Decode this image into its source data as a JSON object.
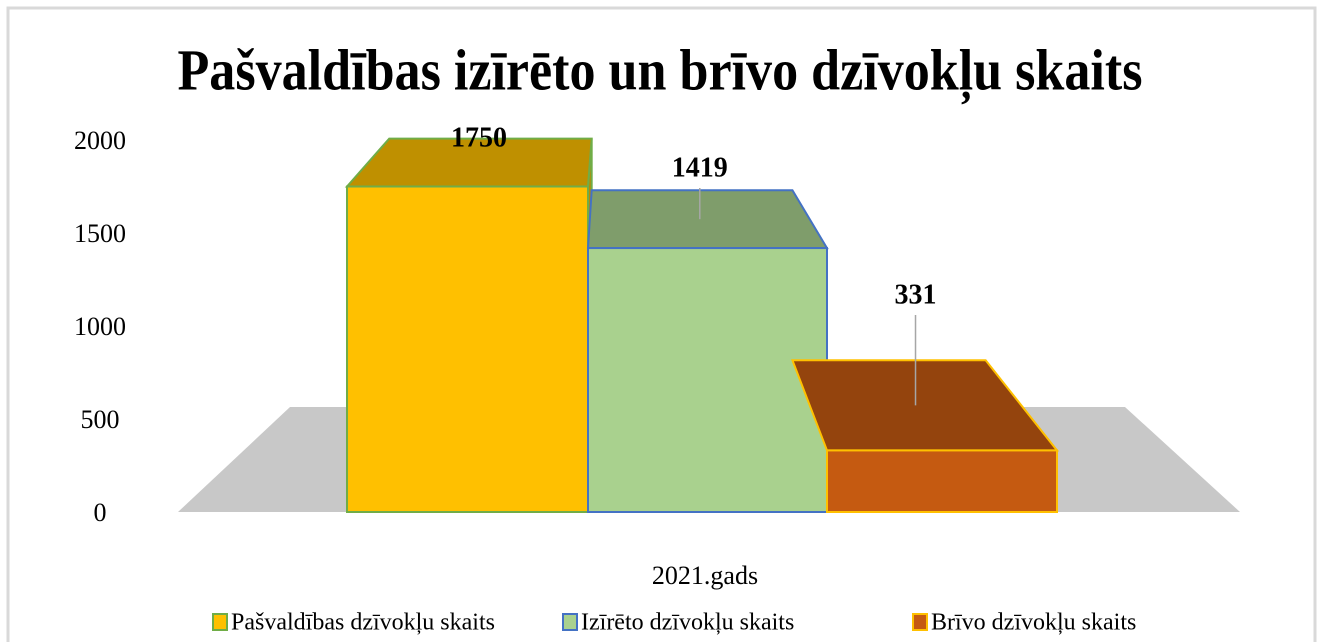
{
  "chart_data": {
    "type": "bar3d",
    "title": "Pašvaldības izīrēto un brīvo dzīvokļu skaits",
    "categories": [
      "2021.gads"
    ],
    "series": [
      {
        "name": "Pašvaldības dzīvokļu skaits",
        "color": "#ffc000",
        "values": [
          1750
        ]
      },
      {
        "name": "Izīrēto dzīvokļu skaits",
        "color": "#a9d18e",
        "values": [
          1419
        ]
      },
      {
        "name": "Brīvo dzīvokļu skaits",
        "color": "#c55a11",
        "values": [
          331
        ]
      }
    ],
    "ylim": [
      0,
      2000
    ],
    "yticks": [
      0,
      500,
      1000,
      1500,
      2000
    ],
    "grid": false,
    "legend": "bottom"
  }
}
